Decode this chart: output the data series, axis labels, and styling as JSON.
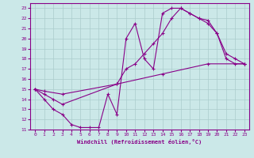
{
  "xlabel": "Windchill (Refroidissement éolien,°C)",
  "bg_color": "#cbe8e8",
  "line_color": "#880088",
  "grid_color": "#aacccc",
  "xlim": [
    -0.5,
    23.5
  ],
  "ylim": [
    11,
    23.5
  ],
  "xticks": [
    0,
    1,
    2,
    3,
    4,
    5,
    6,
    7,
    8,
    9,
    10,
    11,
    12,
    13,
    14,
    15,
    16,
    17,
    18,
    19,
    20,
    21,
    22,
    23
  ],
  "yticks": [
    11,
    12,
    13,
    14,
    15,
    16,
    17,
    18,
    19,
    20,
    21,
    22,
    23
  ],
  "line1_x": [
    0,
    1,
    2,
    3,
    4,
    5,
    6,
    7,
    8,
    9,
    10,
    11,
    12,
    13,
    14,
    15,
    16,
    17,
    18,
    19,
    20,
    21,
    22,
    23
  ],
  "line1_y": [
    15,
    14,
    13,
    12.5,
    11.5,
    11.2,
    11.2,
    11.2,
    14.5,
    12.5,
    20,
    21.5,
    18,
    17,
    22.5,
    23,
    23,
    22.5,
    22,
    21.5,
    20.5,
    18,
    17.5,
    17.5
  ],
  "line2_x": [
    0,
    1,
    2,
    3,
    9,
    10,
    11,
    12,
    13,
    14,
    15,
    16,
    17,
    18,
    19,
    20,
    21,
    22,
    23
  ],
  "line2_y": [
    15,
    14.5,
    14,
    13.5,
    15.5,
    17,
    17.5,
    18.5,
    19.5,
    20.5,
    22,
    23,
    22.5,
    22,
    21.8,
    20.5,
    18.5,
    18,
    17.5
  ],
  "line3_x": [
    0,
    1,
    3,
    9,
    14,
    19,
    23
  ],
  "line3_y": [
    15,
    14.8,
    14.5,
    15.5,
    16.5,
    17.5,
    17.5
  ]
}
